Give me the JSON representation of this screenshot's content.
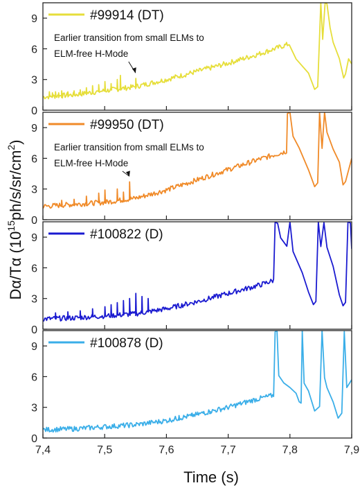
{
  "chart_data": {
    "type": "line",
    "xlabel": "Time (s)",
    "ylabel": {
      "base": "Dα/Tα (10",
      "exp1": "15",
      "mid": "ph/s/sr/cm",
      "exp2": "2",
      "end": ")"
    },
    "xlim": [
      7.4,
      7.9
    ],
    "x_ticks": [
      "7,4",
      "7,5",
      "7,6",
      "7,7",
      "7,8",
      "7,9"
    ],
    "ylim": [
      0,
      10.5
    ],
    "y_ticks": [
      "0",
      "3",
      "6",
      "9"
    ],
    "grid": false,
    "legend_placement": "top-left",
    "panels": [
      {
        "name": "#99914 (DT)",
        "color": "#e6de3a",
        "annotation": [
          "Earlier transition from small ELMs to",
          "ELM-free H-Mode"
        ],
        "arrow_target": [
          7.55,
          3.1
        ],
        "baseline": [
          [
            7.4,
            1.3
          ],
          [
            7.45,
            1.5
          ],
          [
            7.5,
            1.9
          ],
          [
            7.55,
            2.3
          ],
          [
            7.6,
            3.0
          ],
          [
            7.65,
            3.8
          ],
          [
            7.7,
            4.6
          ],
          [
            7.75,
            5.5
          ],
          [
            7.8,
            6.5
          ]
        ],
        "post": [
          [
            7.81,
            5.1
          ],
          [
            7.83,
            3.5
          ],
          [
            7.84,
            2.0
          ],
          [
            7.845,
            2.2
          ],
          [
            7.85,
            10.5
          ],
          [
            7.853,
            7.0
          ],
          [
            7.857,
            10.5
          ],
          [
            7.86,
            10.5
          ],
          [
            7.865,
            8.0
          ],
          [
            7.87,
            6.5
          ],
          [
            7.88,
            5.0
          ],
          [
            7.887,
            3.2
          ],
          [
            7.89,
            3.6
          ],
          [
            7.895,
            5.0
          ],
          [
            7.9,
            4.5
          ]
        ],
        "spikes": [
          [
            7.41,
            1.8
          ],
          [
            7.415,
            1.7
          ],
          [
            7.42,
            1.8
          ],
          [
            7.425,
            1.7
          ],
          [
            7.43,
            1.9
          ],
          [
            7.44,
            1.8
          ],
          [
            7.45,
            1.9
          ],
          [
            7.46,
            2.0
          ],
          [
            7.47,
            2.2
          ],
          [
            7.48,
            2.4
          ],
          [
            7.49,
            2.5
          ],
          [
            7.5,
            2.8
          ],
          [
            7.51,
            2.6
          ],
          [
            7.52,
            3.0
          ],
          [
            7.525,
            3.4
          ],
          [
            7.55,
            3.1
          ]
        ]
      },
      {
        "name": "#99950 (DT)",
        "color": "#f08a28",
        "annotation": [
          "Earlier transition from small ELMs to",
          "ELM-free H-Mode"
        ],
        "arrow_target": [
          7.54,
          3.7
        ],
        "baseline": [
          [
            7.4,
            1.3
          ],
          [
            7.45,
            1.5
          ],
          [
            7.5,
            1.7
          ],
          [
            7.55,
            2.1
          ],
          [
            7.6,
            2.9
          ],
          [
            7.65,
            3.9
          ],
          [
            7.7,
            4.9
          ],
          [
            7.75,
            5.9
          ],
          [
            7.795,
            6.7
          ]
        ],
        "post": [
          [
            7.796,
            10.5
          ],
          [
            7.8,
            10.5
          ],
          [
            7.805,
            8.2
          ],
          [
            7.815,
            7.0
          ],
          [
            7.83,
            5.0
          ],
          [
            7.84,
            3.2
          ],
          [
            7.845,
            3.5
          ],
          [
            7.848,
            10.5
          ],
          [
            7.852,
            7.0
          ],
          [
            7.856,
            10.5
          ],
          [
            7.86,
            8.5
          ],
          [
            7.87,
            7.0
          ],
          [
            7.88,
            5.5
          ],
          [
            7.886,
            3.4
          ],
          [
            7.89,
            3.8
          ],
          [
            7.9,
            6.0
          ]
        ],
        "spikes": [
          [
            7.43,
            1.9
          ],
          [
            7.45,
            2.0
          ],
          [
            7.47,
            2.3
          ],
          [
            7.49,
            2.6
          ],
          [
            7.5,
            2.9
          ],
          [
            7.52,
            3.0
          ],
          [
            7.53,
            2.7
          ],
          [
            7.54,
            3.7
          ]
        ]
      },
      {
        "name": "#100822 (D)",
        "color": "#1a1ad0",
        "annotation": [],
        "arrow_target": null,
        "baseline": [
          [
            7.4,
            1.0
          ],
          [
            7.45,
            1.1
          ],
          [
            7.5,
            1.3
          ],
          [
            7.55,
            1.5
          ],
          [
            7.6,
            2.0
          ],
          [
            7.65,
            2.7
          ],
          [
            7.7,
            3.5
          ],
          [
            7.75,
            4.3
          ],
          [
            7.775,
            4.8
          ]
        ],
        "post": [
          [
            7.776,
            10.5
          ],
          [
            7.78,
            10.5
          ],
          [
            7.785,
            9.0
          ],
          [
            7.795,
            8.0
          ],
          [
            7.8,
            10.5
          ],
          [
            7.805,
            7.5
          ],
          [
            7.82,
            5.5
          ],
          [
            7.83,
            3.5
          ],
          [
            7.838,
            2.3
          ],
          [
            7.842,
            2.6
          ],
          [
            7.846,
            10.5
          ],
          [
            7.85,
            8.0
          ],
          [
            7.855,
            10.5
          ],
          [
            7.86,
            8.0
          ],
          [
            7.87,
            6.0
          ],
          [
            7.88,
            3.5
          ],
          [
            7.886,
            2.3
          ],
          [
            7.89,
            2.5
          ],
          [
            7.894,
            10.5
          ],
          [
            7.898,
            10.5
          ],
          [
            7.9,
            8.0
          ]
        ],
        "spikes": [
          [
            7.42,
            1.6
          ],
          [
            7.44,
            1.7
          ],
          [
            7.46,
            1.8
          ],
          [
            7.48,
            2.0
          ],
          [
            7.5,
            2.2
          ],
          [
            7.51,
            2.4
          ],
          [
            7.52,
            2.6
          ],
          [
            7.53,
            2.8
          ],
          [
            7.54,
            3.0
          ],
          [
            7.55,
            3.5
          ],
          [
            7.56,
            3.2
          ],
          [
            7.57,
            3.0
          ]
        ]
      },
      {
        "name": "#100878 (D)",
        "color": "#3aaee8",
        "annotation": [],
        "arrow_target": null,
        "baseline": [
          [
            7.4,
            0.8
          ],
          [
            7.45,
            0.9
          ],
          [
            7.5,
            1.1
          ],
          [
            7.55,
            1.3
          ],
          [
            7.6,
            1.7
          ],
          [
            7.65,
            2.3
          ],
          [
            7.7,
            3.0
          ],
          [
            7.74,
            3.7
          ],
          [
            7.775,
            4.2
          ]
        ],
        "post": [
          [
            7.776,
            10.5
          ],
          [
            7.779,
            10.5
          ],
          [
            7.782,
            6.0
          ],
          [
            7.79,
            5.5
          ],
          [
            7.8,
            5.0
          ],
          [
            7.81,
            4.5
          ],
          [
            7.815,
            3.5
          ],
          [
            7.818,
            3.3
          ],
          [
            7.82,
            10.5
          ],
          [
            7.823,
            5.5
          ],
          [
            7.83,
            4.5
          ],
          [
            7.84,
            2.7
          ],
          [
            7.848,
            3.0
          ],
          [
            7.852,
            10.5
          ],
          [
            7.856,
            6.0
          ],
          [
            7.86,
            5.0
          ],
          [
            7.87,
            3.5
          ],
          [
            7.878,
            2.0
          ],
          [
            7.884,
            2.3
          ],
          [
            7.888,
            10.5
          ],
          [
            7.892,
            5.0
          ],
          [
            7.9,
            5.8
          ]
        ],
        "spikes": [
          [
            7.62,
            2.2
          ],
          [
            7.63,
            2.1
          ],
          [
            7.64,
            2.3
          ],
          [
            7.65,
            2.4
          ],
          [
            7.66,
            2.6
          ],
          [
            7.67,
            2.5
          ]
        ]
      }
    ]
  }
}
